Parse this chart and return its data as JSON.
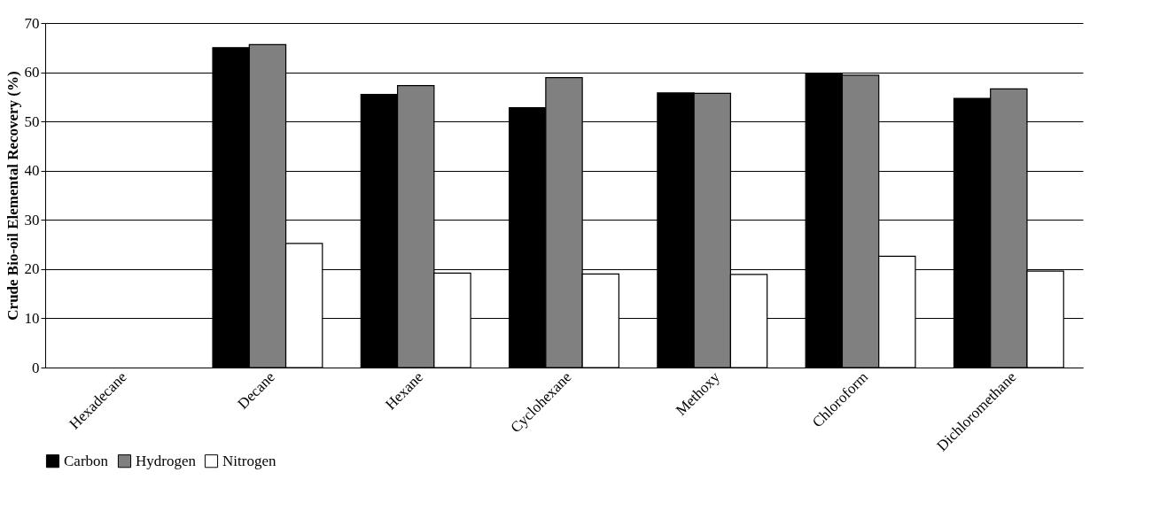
{
  "chart_data": {
    "type": "bar",
    "ylabel": "Crude Bio-oil Elemental Recovery (%)",
    "categories": [
      "Hexadecane",
      "Decane",
      "Hexane",
      "Cyclohexane",
      "Methoxy",
      "Chloroform",
      "Dichloromethane"
    ],
    "series": [
      {
        "name": "Carbon",
        "color": "#000000",
        "values": [
          null,
          65,
          55.5,
          52.8,
          55.8,
          59.8,
          54.7
        ]
      },
      {
        "name": "Hydrogen",
        "color": "#808080",
        "values": [
          null,
          65.6,
          57.3,
          58.9,
          55.7,
          59.4,
          56.6
        ]
      },
      {
        "name": "Nitrogen",
        "color": "#ffffff",
        "values": [
          null,
          25.2,
          19.2,
          19.0,
          18.9,
          22.6,
          19.6
        ]
      }
    ],
    "ylim": [
      0,
      70
    ],
    "yticks": [
      0,
      10,
      20,
      30,
      40,
      50,
      60,
      70
    ],
    "grid": "y",
    "legend": "bottom"
  }
}
